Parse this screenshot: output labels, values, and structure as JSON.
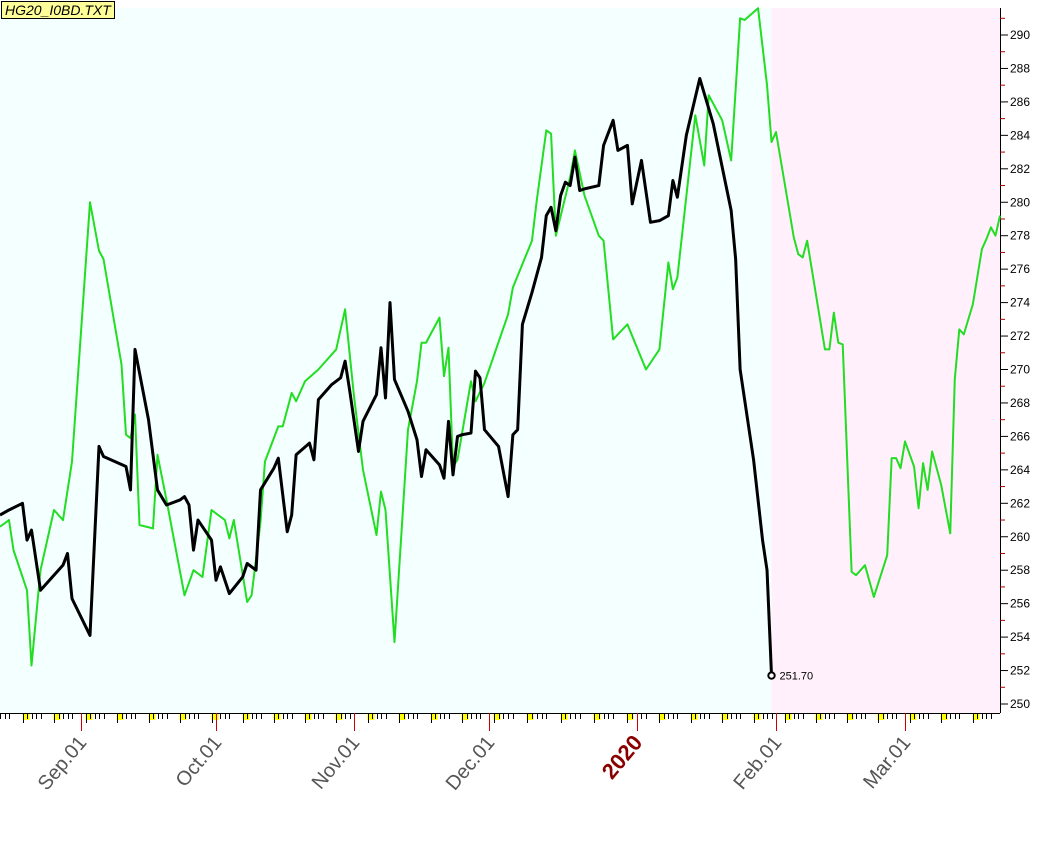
{
  "chart_data": {
    "type": "line",
    "title": "HG20_I0BD.TXT",
    "xlabel": "",
    "ylabel": "",
    "x_range": [
      "2019-08-14",
      "2020-03-22"
    ],
    "ylim": [
      249,
      292
    ],
    "y_ticks": [
      250,
      252,
      254,
      256,
      258,
      260,
      262,
      264,
      266,
      268,
      270,
      272,
      274,
      276,
      278,
      280,
      282,
      284,
      286,
      288,
      290
    ],
    "x_tick_labels": [
      {
        "date": "2019-09-01",
        "label": "Sep.01"
      },
      {
        "date": "2019-10-01",
        "label": "Oct.01"
      },
      {
        "date": "2019-11-01",
        "label": "Nov.01"
      },
      {
        "date": "2019-12-01",
        "label": "Dec.01"
      },
      {
        "date": "2020-01-01",
        "label": "2020",
        "emphasis": true
      },
      {
        "date": "2020-02-01",
        "label": "Feb.01"
      },
      {
        "date": "2020-03-01",
        "label": "Mar.01"
      }
    ],
    "grid": false,
    "background_regions": [
      {
        "from": "2019-08-14",
        "to": "2020-01-31",
        "color": "#f4ffff"
      },
      {
        "from": "2020-01-31",
        "to": "2020-03-22",
        "color": "#fff0fc"
      }
    ],
    "last_value_label": "251.70",
    "series": [
      {
        "color": "#000000",
        "points": [
          [
            "2019-08-14",
            261.3
          ],
          [
            "2019-08-16",
            261.6
          ],
          [
            "2019-08-19",
            262.0
          ],
          [
            "2019-08-20",
            259.8
          ],
          [
            "2019-08-21",
            260.4
          ],
          [
            "2019-08-23",
            256.8
          ],
          [
            "2019-08-28",
            258.3
          ],
          [
            "2019-08-29",
            259.0
          ],
          [
            "2019-08-30",
            256.3
          ],
          [
            "2019-09-03",
            254.1
          ],
          [
            "2019-09-05",
            265.4
          ],
          [
            "2019-09-06",
            264.8
          ],
          [
            "2019-09-11",
            264.2
          ],
          [
            "2019-09-12",
            262.8
          ],
          [
            "2019-09-13",
            271.2
          ],
          [
            "2019-09-16",
            267.0
          ],
          [
            "2019-09-18",
            262.8
          ],
          [
            "2019-09-20",
            261.9
          ],
          [
            "2019-09-23",
            262.2
          ],
          [
            "2019-09-24",
            262.4
          ],
          [
            "2019-09-25",
            261.9
          ],
          [
            "2019-09-26",
            259.2
          ],
          [
            "2019-09-27",
            261.0
          ],
          [
            "2019-09-30",
            259.8
          ],
          [
            "2019-10-01",
            257.4
          ],
          [
            "2019-10-02",
            258.2
          ],
          [
            "2019-10-04",
            256.6
          ],
          [
            "2019-10-07",
            257.6
          ],
          [
            "2019-10-08",
            258.4
          ],
          [
            "2019-10-10",
            258.0
          ],
          [
            "2019-10-11",
            262.8
          ],
          [
            "2019-10-14",
            264.1
          ],
          [
            "2019-10-15",
            264.7
          ],
          [
            "2019-10-17",
            260.3
          ],
          [
            "2019-10-18",
            261.3
          ],
          [
            "2019-10-19",
            264.9
          ],
          [
            "2019-10-22",
            265.6
          ],
          [
            "2019-10-23",
            264.6
          ],
          [
            "2019-10-24",
            268.2
          ],
          [
            "2019-10-27",
            269.1
          ],
          [
            "2019-10-29",
            269.5
          ],
          [
            "2019-10-30",
            270.5
          ],
          [
            "2019-10-31",
            268.8
          ],
          [
            "2019-11-02",
            265.1
          ],
          [
            "2019-11-03",
            266.9
          ],
          [
            "2019-11-06",
            268.5
          ],
          [
            "2019-11-07",
            271.3
          ],
          [
            "2019-11-08",
            268.3
          ],
          [
            "2019-11-09",
            274.0
          ],
          [
            "2019-11-10",
            269.4
          ],
          [
            "2019-11-13",
            267.5
          ],
          [
            "2019-11-15",
            265.8
          ],
          [
            "2019-11-16",
            263.6
          ],
          [
            "2019-11-17",
            265.2
          ],
          [
            "2019-11-20",
            264.3
          ],
          [
            "2019-11-21",
            263.5
          ],
          [
            "2019-11-22",
            266.9
          ],
          [
            "2019-11-23",
            263.7
          ],
          [
            "2019-11-24",
            266.0
          ],
          [
            "2019-11-25",
            266.1
          ],
          [
            "2019-11-27",
            266.2
          ],
          [
            "2019-11-28",
            269.9
          ],
          [
            "2019-11-29",
            269.5
          ],
          [
            "2019-11-30",
            266.4
          ],
          [
            "2019-12-03",
            265.4
          ],
          [
            "2019-12-05",
            262.4
          ],
          [
            "2019-12-06",
            266.1
          ],
          [
            "2019-12-07",
            266.4
          ],
          [
            "2019-12-08",
            272.7
          ],
          [
            "2019-12-10",
            274.6
          ],
          [
            "2019-12-12",
            276.7
          ],
          [
            "2019-12-13",
            279.2
          ],
          [
            "2019-12-14",
            279.7
          ],
          [
            "2019-12-15",
            278.3
          ],
          [
            "2019-12-16",
            280.4
          ],
          [
            "2019-12-17",
            281.2
          ],
          [
            "2019-12-18",
            281.0
          ],
          [
            "2019-12-19",
            282.7
          ],
          [
            "2019-12-20",
            280.7
          ],
          [
            "2019-12-21",
            280.8
          ],
          [
            "2019-12-24",
            281.0
          ],
          [
            "2019-12-25",
            283.4
          ],
          [
            "2019-12-27",
            284.9
          ],
          [
            "2019-12-28",
            283.1
          ],
          [
            "2019-12-30",
            283.4
          ],
          [
            "2019-12-31",
            279.9
          ],
          [
            "2020-01-02",
            282.5
          ],
          [
            "2020-01-04",
            278.8
          ],
          [
            "2020-01-06",
            278.9
          ],
          [
            "2020-01-08",
            279.2
          ],
          [
            "2020-01-09",
            281.3
          ],
          [
            "2020-01-10",
            280.3
          ],
          [
            "2020-01-12",
            284.0
          ],
          [
            "2020-01-15",
            287.4
          ],
          [
            "2020-01-18",
            284.7
          ],
          [
            "2020-01-22",
            279.5
          ],
          [
            "2020-01-23",
            276.6
          ],
          [
            "2020-01-24",
            270.0
          ],
          [
            "2020-01-27",
            264.6
          ],
          [
            "2020-01-29",
            259.8
          ],
          [
            "2020-01-30",
            258.0
          ],
          [
            "2020-01-31",
            251.7
          ]
        ]
      },
      {
        "color": "#22dd22",
        "points": [
          [
            "2019-08-14",
            260.6
          ],
          [
            "2019-08-16",
            261.0
          ],
          [
            "2019-08-17",
            259.2
          ],
          [
            "2019-08-20",
            256.8
          ],
          [
            "2019-08-21",
            252.3
          ],
          [
            "2019-08-23",
            258.0
          ],
          [
            "2019-08-26",
            261.6
          ],
          [
            "2019-08-28",
            261.0
          ],
          [
            "2019-08-30",
            264.5
          ],
          [
            "2019-09-03",
            280.0
          ],
          [
            "2019-09-05",
            277.1
          ],
          [
            "2019-09-06",
            276.6
          ],
          [
            "2019-09-10",
            270.3
          ],
          [
            "2019-09-11",
            266.1
          ],
          [
            "2019-09-12",
            265.9
          ],
          [
            "2019-09-13",
            267.3
          ],
          [
            "2019-09-14",
            260.7
          ],
          [
            "2019-09-17",
            260.5
          ],
          [
            "2019-09-18",
            264.9
          ],
          [
            "2019-09-20",
            262.2
          ],
          [
            "2019-09-24",
            256.5
          ],
          [
            "2019-09-26",
            258.0
          ],
          [
            "2019-09-28",
            257.6
          ],
          [
            "2019-09-30",
            261.6
          ],
          [
            "2019-10-03",
            261.0
          ],
          [
            "2019-10-04",
            259.9
          ],
          [
            "2019-10-05",
            261.0
          ],
          [
            "2019-10-08",
            256.1
          ],
          [
            "2019-10-09",
            256.5
          ],
          [
            "2019-10-11",
            260.9
          ],
          [
            "2019-10-12",
            264.5
          ],
          [
            "2019-10-15",
            266.6
          ],
          [
            "2019-10-16",
            266.6
          ],
          [
            "2019-10-18",
            268.6
          ],
          [
            "2019-10-19",
            268.1
          ],
          [
            "2019-10-21",
            269.3
          ],
          [
            "2019-10-24",
            270.0
          ],
          [
            "2019-10-28",
            271.2
          ],
          [
            "2019-10-30",
            273.6
          ],
          [
            "2019-11-01",
            268.4
          ],
          [
            "2019-11-03",
            264.0
          ],
          [
            "2019-11-06",
            260.1
          ],
          [
            "2019-11-07",
            262.7
          ],
          [
            "2019-11-08",
            261.6
          ],
          [
            "2019-11-10",
            253.7
          ],
          [
            "2019-11-13",
            266.4
          ],
          [
            "2019-11-15",
            269.3
          ],
          [
            "2019-11-16",
            271.6
          ],
          [
            "2019-11-17",
            271.6
          ],
          [
            "2019-11-20",
            273.1
          ],
          [
            "2019-11-21",
            269.6
          ],
          [
            "2019-11-22",
            271.3
          ],
          [
            "2019-11-23",
            264.2
          ],
          [
            "2019-11-24",
            264.6
          ],
          [
            "2019-11-27",
            269.3
          ],
          [
            "2019-11-28",
            268.1
          ],
          [
            "2019-11-30",
            269.2
          ],
          [
            "2019-12-05",
            273.3
          ],
          [
            "2019-12-06",
            274.9
          ],
          [
            "2019-12-08",
            276.3
          ],
          [
            "2019-12-10",
            277.7
          ],
          [
            "2019-12-11",
            280.1
          ],
          [
            "2019-12-13",
            284.3
          ],
          [
            "2019-12-14",
            284.1
          ],
          [
            "2019-12-15",
            278.0
          ],
          [
            "2019-12-18",
            281.5
          ],
          [
            "2019-12-19",
            283.1
          ],
          [
            "2019-12-21",
            280.4
          ],
          [
            "2019-12-24",
            278.0
          ],
          [
            "2019-12-25",
            277.7
          ],
          [
            "2019-12-27",
            271.8
          ],
          [
            "2019-12-30",
            272.7
          ],
          [
            "2020-01-03",
            270.0
          ],
          [
            "2020-01-06",
            271.2
          ],
          [
            "2020-01-08",
            276.4
          ],
          [
            "2020-01-09",
            274.8
          ],
          [
            "2020-01-10",
            275.5
          ],
          [
            "2020-01-14",
            285.2
          ],
          [
            "2020-01-16",
            282.2
          ],
          [
            "2020-01-17",
            286.4
          ],
          [
            "2020-01-20",
            284.9
          ],
          [
            "2020-01-22",
            282.5
          ],
          [
            "2020-01-24",
            291.0
          ],
          [
            "2020-01-25",
            290.9
          ],
          [
            "2020-01-28",
            291.6
          ],
          [
            "2020-01-30",
            287.0
          ],
          [
            "2020-01-31",
            283.6
          ],
          [
            "2020-02-01",
            284.2
          ],
          [
            "2020-02-05",
            277.9
          ],
          [
            "2020-02-06",
            276.9
          ],
          [
            "2020-02-07",
            276.7
          ],
          [
            "2020-02-08",
            277.7
          ],
          [
            "2020-02-12",
            271.2
          ],
          [
            "2020-02-13",
            271.2
          ],
          [
            "2020-02-14",
            273.4
          ],
          [
            "2020-02-15",
            271.6
          ],
          [
            "2020-02-16",
            271.5
          ],
          [
            "2020-02-18",
            257.9
          ],
          [
            "2020-02-19",
            257.7
          ],
          [
            "2020-02-21",
            258.3
          ],
          [
            "2020-02-23",
            256.4
          ],
          [
            "2020-02-26",
            258.9
          ],
          [
            "2020-02-27",
            264.7
          ],
          [
            "2020-02-28",
            264.7
          ],
          [
            "2020-02-29",
            264.1
          ],
          [
            "2020-03-01",
            265.7
          ],
          [
            "2020-03-03",
            264.2
          ],
          [
            "2020-03-04",
            261.7
          ],
          [
            "2020-03-05",
            264.4
          ],
          [
            "2020-03-06",
            262.8
          ],
          [
            "2020-03-07",
            265.1
          ],
          [
            "2020-03-09",
            263.1
          ],
          [
            "2020-03-11",
            260.2
          ],
          [
            "2020-03-12",
            269.4
          ],
          [
            "2020-03-13",
            272.4
          ],
          [
            "2020-03-14",
            272.1
          ],
          [
            "2020-03-16",
            273.9
          ],
          [
            "2020-03-18",
            277.2
          ],
          [
            "2020-03-19",
            277.8
          ],
          [
            "2020-03-20",
            278.5
          ],
          [
            "2020-03-21",
            278.0
          ],
          [
            "2020-03-22",
            279.2
          ]
        ]
      }
    ]
  }
}
